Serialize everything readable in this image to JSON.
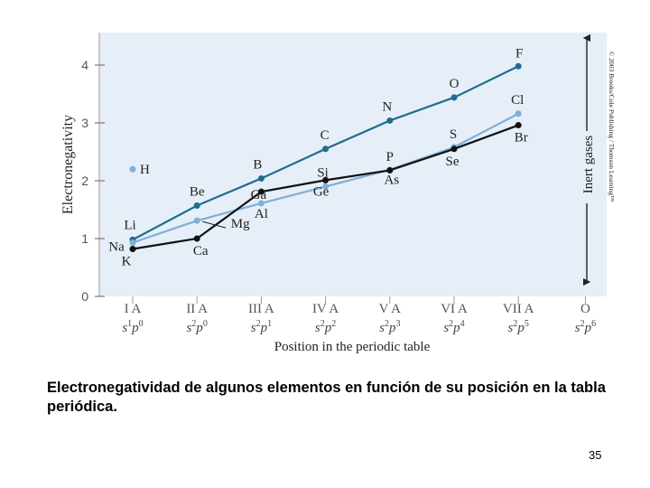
{
  "chart_data": {
    "type": "line",
    "ylabel": "Electronegativity",
    "xlabel": "Position in the periodic table",
    "ylim": [
      0,
      4
    ],
    "yticks": [
      "0",
      "1",
      "2",
      "3",
      "4"
    ],
    "groups": [
      "I A",
      "II A",
      "III A",
      "IV A",
      "V A",
      "VI A",
      "VII A",
      "O"
    ],
    "configs": [
      {
        "base": "s",
        "sup1": "1",
        "mid": "p",
        "sup2": "0"
      },
      {
        "base": "s",
        "sup1": "2",
        "mid": "p",
        "sup2": "0"
      },
      {
        "base": "s",
        "sup1": "2",
        "mid": "p",
        "sup2": "1"
      },
      {
        "base": "s",
        "sup1": "2",
        "mid": "p",
        "sup2": "2"
      },
      {
        "base": "s",
        "sup1": "2",
        "mid": "p",
        "sup2": "3"
      },
      {
        "base": "s",
        "sup1": "2",
        "mid": "p",
        "sup2": "4"
      },
      {
        "base": "s",
        "sup1": "2",
        "mid": "p",
        "sup2": "5"
      },
      {
        "base": "s",
        "sup1": "2",
        "mid": "p",
        "sup2": "6"
      }
    ],
    "series": [
      {
        "color": "#1f6e8c",
        "points": [
          {
            "x": 0,
            "y": 0.98,
            "label": "Li"
          },
          {
            "x": 1,
            "y": 1.57,
            "label": "Be"
          },
          {
            "x": 2,
            "y": 2.04,
            "label": "B"
          },
          {
            "x": 3,
            "y": 2.55,
            "label": "C"
          },
          {
            "x": 4,
            "y": 3.04,
            "label": "N"
          },
          {
            "x": 5,
            "y": 3.44,
            "label": "O"
          },
          {
            "x": 6,
            "y": 3.98,
            "label": "F"
          }
        ]
      },
      {
        "color": "#7fb0d6",
        "points": [
          {
            "x": 0,
            "y": 0.93,
            "label": "Na"
          },
          {
            "x": 1,
            "y": 1.31,
            "label": "Mg"
          },
          {
            "x": 2,
            "y": 1.61,
            "label": "Al"
          },
          {
            "x": 3,
            "y": 1.9,
            "label": "Si"
          },
          {
            "x": 4,
            "y": 2.19,
            "label": "P"
          },
          {
            "x": 5,
            "y": 2.58,
            "label": "S"
          },
          {
            "x": 6,
            "y": 3.16,
            "label": "Cl"
          }
        ]
      },
      {
        "color": "#111111",
        "points": [
          {
            "x": 0,
            "y": 0.82,
            "label": "K"
          },
          {
            "x": 1,
            "y": 1.0,
            "label": "Ca"
          },
          {
            "x": 2,
            "y": 1.81,
            "label": "Ga"
          },
          {
            "x": 3,
            "y": 2.01,
            "label": "Ge"
          },
          {
            "x": 4,
            "y": 2.18,
            "label": "As"
          },
          {
            "x": 5,
            "y": 2.55,
            "label": "Se"
          },
          {
            "x": 6,
            "y": 2.96,
            "label": "Br"
          }
        ]
      }
    ],
    "extra_points": [
      {
        "x": 0,
        "y": 2.2,
        "label": "H",
        "color": "#7fb0d6"
      }
    ],
    "annotation": "Inert gases",
    "copyright": "© 2003 Brooks/Cole Publishing / Thomson Learning™"
  },
  "caption": "Electronegatividad de algunos elementos en función de su posición en la tabla periódica.",
  "page_number": "35"
}
